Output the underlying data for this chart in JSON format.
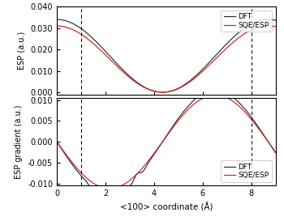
{
  "upper_panel": {
    "ylabel": "ESP (a.u.)",
    "ylim": [
      -0.001,
      0.04
    ],
    "yticks": [
      0.0,
      0.01,
      0.02,
      0.03,
      0.04
    ],
    "xlim": [
      0,
      9.0
    ]
  },
  "lower_panel": {
    "ylabel": "ESP gradient (a.u.)",
    "ylim": [
      -0.0105,
      0.0105
    ],
    "yticks": [
      -0.01,
      -0.005,
      0.0,
      0.005,
      0.01
    ],
    "xlim": [
      0,
      9.0
    ]
  },
  "xlabel": "<100> coordinate (Å)",
  "vlines": [
    1.0,
    8.0
  ],
  "dft_color": "#2b2b2b",
  "sqe_color": "#cc2222",
  "legend_labels": [
    "DFT",
    "SQE/ESP"
  ],
  "xticks": [
    0,
    2,
    4,
    6,
    8
  ],
  "figsize": [
    3.5,
    2.73
  ],
  "dpi": 100,
  "esp_dft_amplitude": 0.034,
  "esp_sqe_amplitude": 0.031,
  "esp_period": 8.7,
  "grad_dft_noise_amp": 0.0012,
  "grad_dft_noise_amp2": 0.0008,
  "grad_dft_noise_amp3": 0.001
}
